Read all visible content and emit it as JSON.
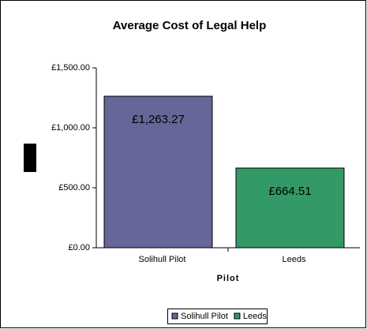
{
  "chart_data": {
    "type": "bar",
    "title": "Average Cost of Legal Help",
    "x_label": "Pilot",
    "categories": [
      "Solihull Pilot",
      "Leeds"
    ],
    "values": [
      1263.27,
      664.51
    ],
    "value_labels": [
      "£1,263.27",
      "£664.51"
    ],
    "colors": [
      "#666699",
      "#339966"
    ],
    "ylim": [
      0,
      1500
    ],
    "yticks": [
      {
        "value": 0,
        "label": "£0.00"
      },
      {
        "value": 500,
        "label": "£500.00"
      },
      {
        "value": 1000,
        "label": "£1,000.00"
      },
      {
        "value": 1500,
        "label": "£1,500.00"
      }
    ],
    "legend": "bottom"
  }
}
